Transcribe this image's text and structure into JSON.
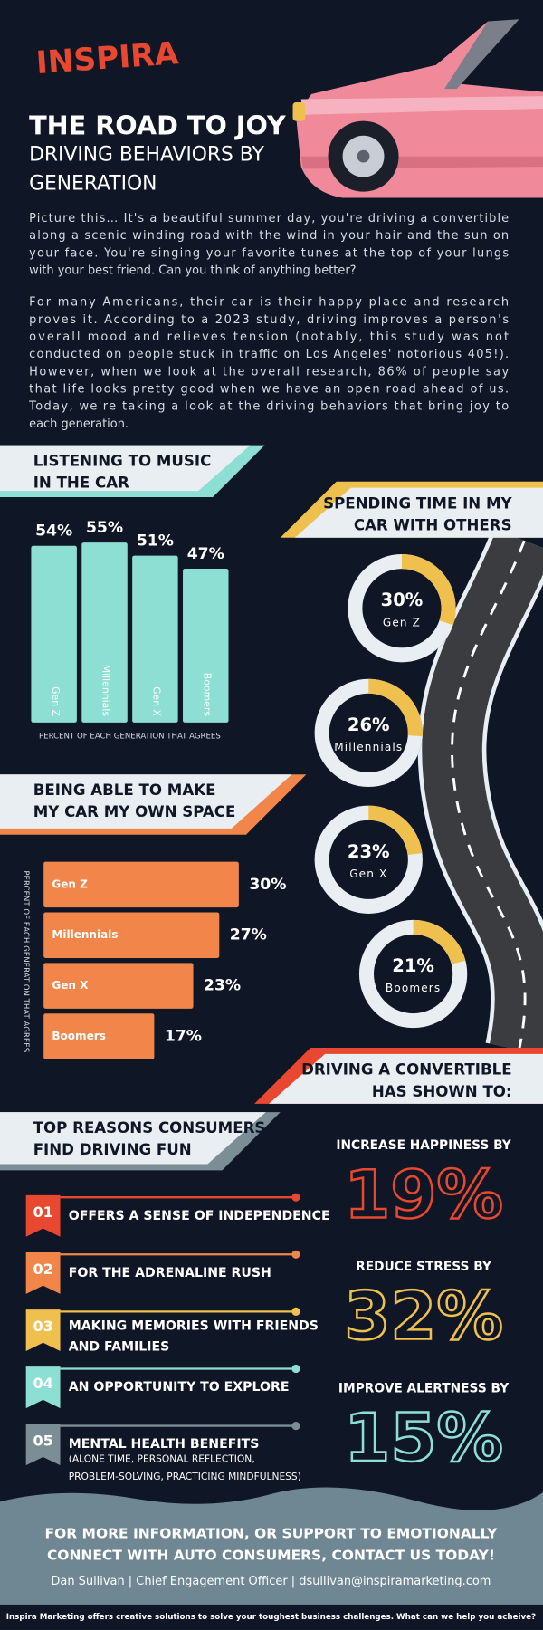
{
  "header": {
    "brand": "INSPIRA",
    "title": "THE ROAD TO JOY",
    "subtitle": [
      "DRIVING BEHAVIORS BY",
      "GENERATION"
    ]
  },
  "intro": [
    [
      "Picture this… It's a beautiful summer day, you're driving a convertible",
      "along a scenic winding road with the wind in your hair and the sun on",
      "your face. You're singing your favorite tunes at the top of your lungs",
      "with your best friend. Can you think of anything better?"
    ],
    [
      "For many Americans, their car is their happy place and research",
      "proves it. According to a 2023 study, driving improves a person's",
      "overall mood and relieves tension (notably, this study was not",
      "conducted on people stuck in traffic on Los Angeles' notorious 405!).",
      "However, when we look at the overall research, 86% of people say",
      "that life looks pretty good when we have an open road ahead of us.",
      "Today, we're taking a look at the driving behaviors that bring joy to",
      "each generation."
    ]
  ],
  "chart_data": [
    {
      "type": "bar",
      "title": [
        "LISTENING TO MUSIC",
        "IN THE CAR"
      ],
      "categories": [
        "Gen Z",
        "Millennials",
        "Gen X",
        "Boomers"
      ],
      "values": [
        54,
        55,
        51,
        47
      ],
      "value_labels": [
        "54%",
        "55%",
        "51%",
        "47%"
      ],
      "ylim": [
        0,
        60
      ],
      "color": "#8ddfd3",
      "accent": "#8ddfd3",
      "x_label": "PERCENT OF EACH GENERATION THAT AGREES"
    },
    {
      "type": "donut",
      "title": [
        "SPENDING TIME IN MY",
        "CAR WITH OTHERS"
      ],
      "categories": [
        "Gen Z",
        "Millennials",
        "Gen X",
        "Boomers"
      ],
      "values": [
        30,
        26,
        23,
        21
      ],
      "value_labels": [
        "30%",
        "26%",
        "23%",
        "21%"
      ],
      "color": "#f0c04f",
      "track_color": "#e8eef1",
      "accent": "#f0c04f"
    },
    {
      "type": "barh",
      "title": [
        "BEING ABLE TO MAKE",
        "MY CAR MY OWN SPACE"
      ],
      "categories": [
        "Gen Z",
        "Millennials",
        "Gen X",
        "Boomers"
      ],
      "values": [
        30,
        27,
        23,
        17
      ],
      "value_labels": [
        "30%",
        "27%",
        "23%",
        "17%"
      ],
      "xlim": [
        0,
        30
      ],
      "color": "#f2854a",
      "accent": "#f2854a",
      "y_label": "PERCENT OF EACH GENERATION THAT AGREES"
    }
  ],
  "convertible": {
    "title": [
      "DRIVING A CONVERTIBLE",
      "HAS SHOWN TO:"
    ],
    "stats": [
      {
        "label": "INCREASE HAPPINESS BY",
        "value": "19%",
        "color": "#e8482f"
      },
      {
        "label": "REDUCE STRESS BY",
        "value": "32%",
        "color": "#f0c04f"
      },
      {
        "label": "IMPROVE ALERTNESS BY",
        "value": "15%",
        "color": "#8ddfd3"
      }
    ]
  },
  "reasons": {
    "title": [
      "TOP REASONS CONSUMERS",
      "FIND DRIVING FUN"
    ],
    "items": [
      {
        "number": "01",
        "lines": [
          "OFFERS A SENSE OF INDEPENDENCE"
        ],
        "color": "#e8482f"
      },
      {
        "number": "02",
        "lines": [
          "FOR THE ADRENALINE RUSH"
        ],
        "color": "#f2854a"
      },
      {
        "number": "03",
        "lines": [
          "MAKING MEMORIES WITH FRIENDS",
          "AND FAMILIES"
        ],
        "color": "#f0c04f"
      },
      {
        "number": "04",
        "lines": [
          "AN OPPORTUNITY TO EXPLORE"
        ],
        "color": "#8ddfd3"
      },
      {
        "number": "05",
        "lines": [
          "MENTAL HEALTH BENEFITS"
        ],
        "note": [
          "(ALONE TIME, PERSONAL REFLECTION,",
          "PROBLEM-SOLVING, PRACTICING MINDFULNESS)"
        ],
        "color": "#7b8e96"
      }
    ]
  },
  "footer": {
    "cta": [
      "FOR MORE INFORMATION, OR SUPPORT TO EMOTIONALLY",
      "CONNECT WITH AUTO CONSUMERS, CONTACT US TODAY!"
    ],
    "contact": "Dan Sullivan | Chief Engagement Officer | dsullivan@inspiramarketing.com",
    "tagline": "Inspira Marketing offers creative solutions to solve your toughest business challenges. What can we help you acheive?"
  }
}
